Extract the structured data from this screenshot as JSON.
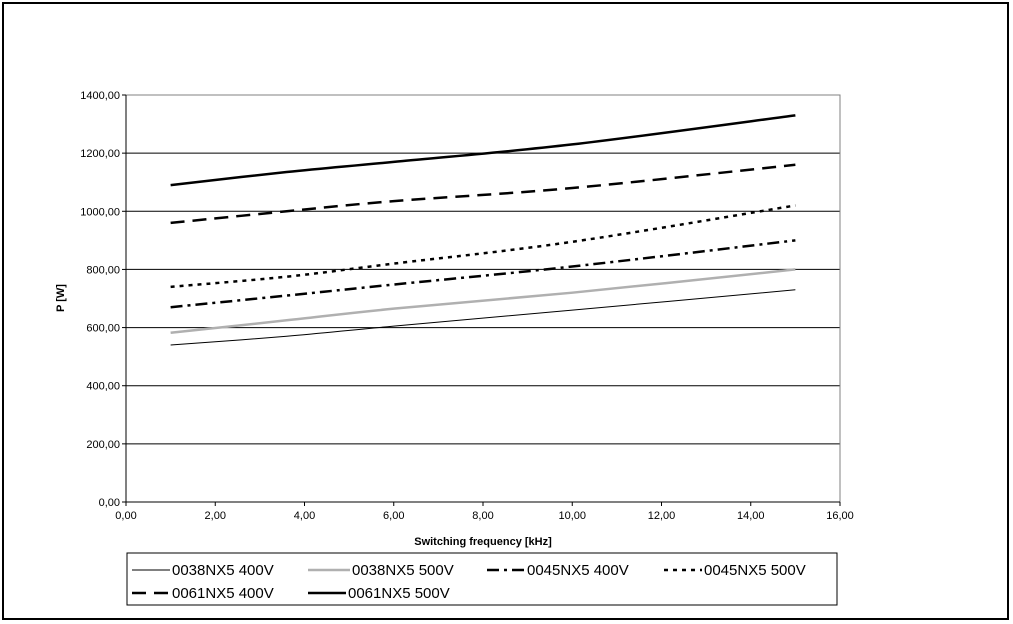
{
  "chart_data": {
    "type": "line",
    "title": "",
    "xlabel": "Switching frequency [kHz]",
    "ylabel": "P [W]",
    "xlim": [
      0,
      16
    ],
    "ylim": [
      0,
      1400
    ],
    "x_ticks": [
      0,
      2,
      4,
      6,
      8,
      10,
      12,
      14,
      16
    ],
    "y_ticks": [
      0,
      200,
      400,
      600,
      800,
      1000,
      1200,
      1400
    ],
    "x_tick_labels": [
      "0,00",
      "2,00",
      "4,00",
      "6,00",
      "8,00",
      "10,00",
      "12,00",
      "14,00",
      "16,00"
    ],
    "y_tick_labels": [
      "0,00",
      "200,00",
      "400,00",
      "600,00",
      "800,00",
      "1000,00",
      "1200,00",
      "1400,00"
    ],
    "grid": "horizontal",
    "legend_position": "bottom",
    "x": [
      1,
      3.6,
      6,
      10,
      15
    ],
    "series": [
      {
        "name": "0038NX5 400V",
        "values": [
          540,
          570,
          605,
          660,
          730
        ],
        "color": "#000000",
        "style": "thin-solid"
      },
      {
        "name": "0038NX5 500V",
        "values": [
          582,
          625,
          665,
          720,
          800
        ],
        "color": "#b0b0b0",
        "style": "thick-solid"
      },
      {
        "name": "0045NX5 400V",
        "values": [
          670,
          710,
          748,
          810,
          900
        ],
        "color": "#000000",
        "style": "dash-dot"
      },
      {
        "name": "0045NX5 500V",
        "values": [
          740,
          775,
          820,
          895,
          1020
        ],
        "color": "#000000",
        "style": "dotted"
      },
      {
        "name": "0061NX5 400V",
        "values": [
          960,
          1000,
          1035,
          1080,
          1160
        ],
        "color": "#000000",
        "style": "long-dash"
      },
      {
        "name": "0061NX5 500V",
        "values": [
          1090,
          1135,
          1170,
          1230,
          1330
        ],
        "color": "#000000",
        "style": "thick-solid"
      }
    ]
  }
}
